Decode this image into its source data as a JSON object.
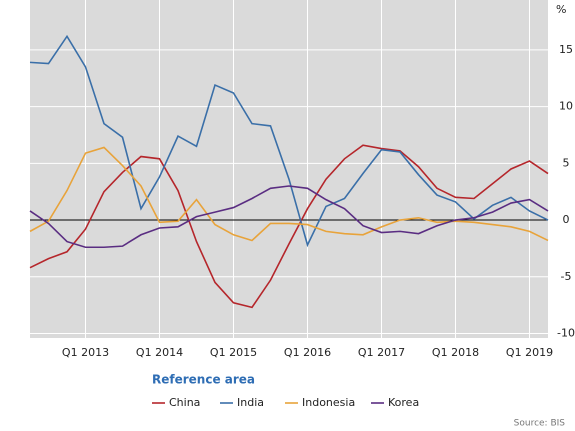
{
  "chart_data": {
    "type": "line",
    "unit": "%",
    "categories": [
      null,
      null,
      null,
      "Q1 2013",
      null,
      null,
      null,
      "Q1 2014",
      null,
      null,
      null,
      "Q1 2015",
      null,
      null,
      null,
      "Q1 2016",
      null,
      null,
      null,
      "Q1 2017",
      null,
      null,
      null,
      "Q1 2018",
      null,
      null,
      null,
      "Q1 2019",
      null
    ],
    "series": [
      {
        "name": "China",
        "color": "#b5262b",
        "values": [
          -4.2,
          -3.4,
          -2.8,
          -0.8,
          2.5,
          4.2,
          5.6,
          5.4,
          2.6,
          -1.9,
          -5.5,
          -7.3,
          -7.7,
          -5.3,
          -2.1,
          1.0,
          3.6,
          5.4,
          6.6,
          6.3,
          6.1,
          4.7,
          2.8,
          2.0,
          1.9,
          3.2,
          4.5,
          5.2,
          4.1
        ]
      },
      {
        "name": "India",
        "color": "#3a6fa8",
        "values": [
          13.9,
          13.8,
          16.2,
          13.5,
          8.5,
          7.3,
          1.0,
          3.8,
          7.4,
          6.5,
          11.9,
          11.2,
          8.5,
          8.3,
          3.6,
          -2.2,
          1.2,
          1.9,
          4.1,
          6.2,
          6.0,
          4.0,
          2.2,
          1.6,
          0.1,
          1.3,
          2.0,
          0.8,
          0.0
        ]
      },
      {
        "name": "Indonesia",
        "color": "#e8a33a",
        "values": [
          -1.0,
          -0.1,
          2.6,
          5.9,
          6.4,
          4.8,
          3.0,
          -0.2,
          -0.1,
          1.8,
          -0.4,
          -1.3,
          -1.8,
          -0.3,
          -0.3,
          -0.4,
          -1.0,
          -1.2,
          -1.3,
          -0.6,
          0.0,
          0.2,
          -0.2,
          -0.1,
          -0.2,
          -0.4,
          -0.6,
          -1.0,
          -1.8
        ]
      },
      {
        "name": "Korea",
        "color": "#5a2d82",
        "values": [
          0.8,
          -0.3,
          -1.9,
          -2.4,
          -2.4,
          -2.3,
          -1.3,
          -0.7,
          -0.6,
          0.3,
          0.7,
          1.1,
          1.9,
          2.8,
          3.0,
          2.8,
          1.8,
          1.0,
          -0.5,
          -1.1,
          -1.0,
          -1.2,
          -0.5,
          0.0,
          0.2,
          0.7,
          1.5,
          1.8,
          0.8
        ]
      }
    ],
    "ylim": [
      -10.4,
      19.4
    ],
    "yticks": [
      -10,
      -5,
      0,
      5,
      10,
      15
    ],
    "grid": true,
    "legend_title": "Reference area",
    "source": "Source: BIS"
  }
}
